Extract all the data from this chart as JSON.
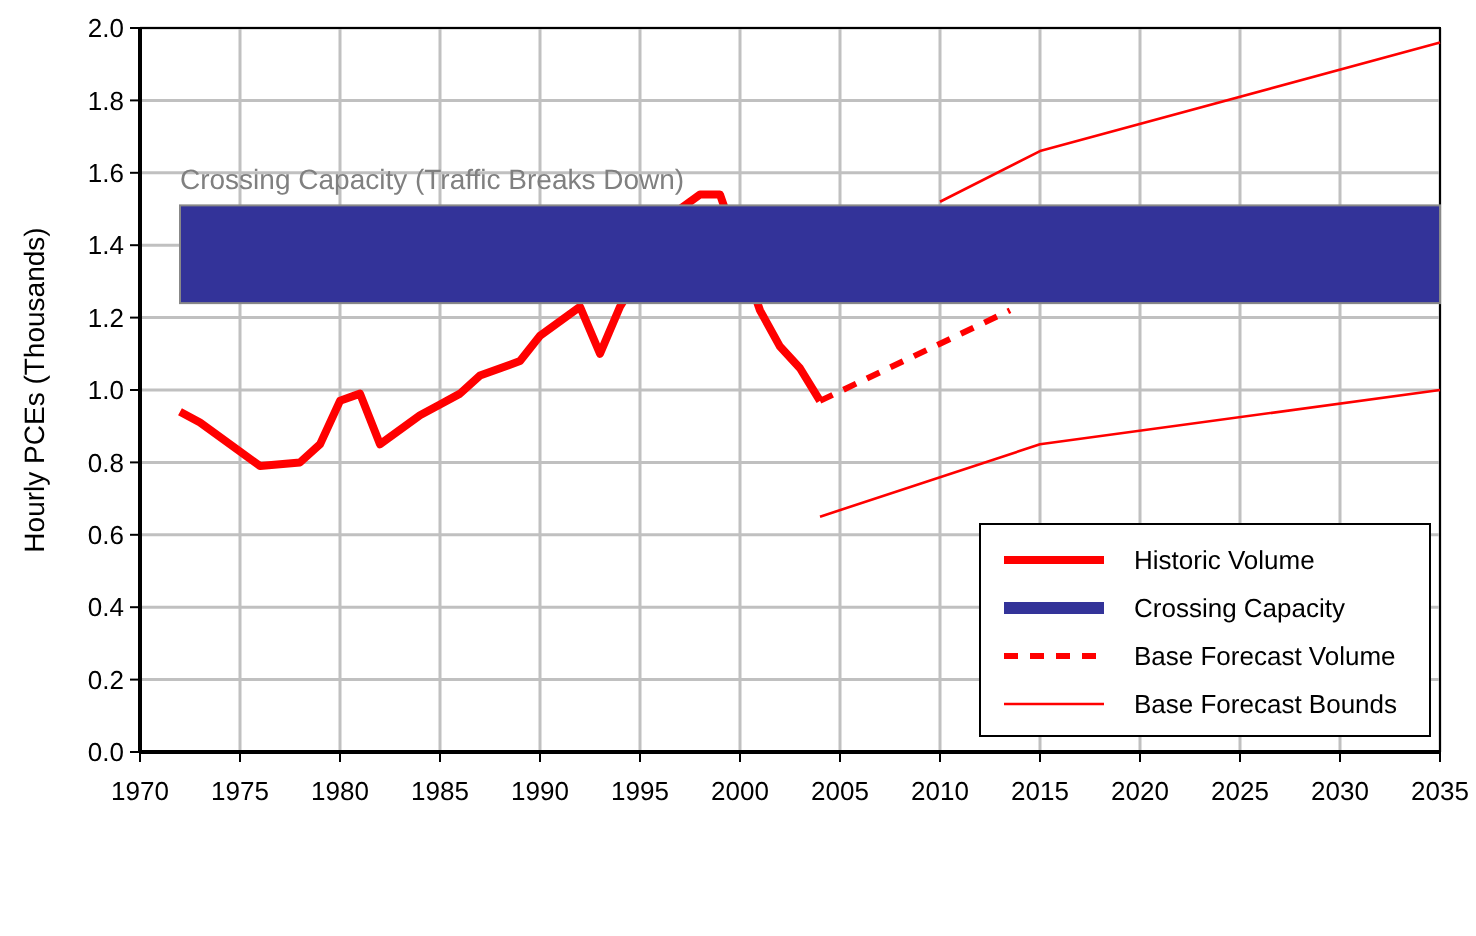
{
  "chart_data": {
    "type": "line",
    "ylabel": "Hourly PCEs (Thousands)",
    "xlim": [
      1970,
      2035
    ],
    "xticks": [
      1970,
      1975,
      1980,
      1985,
      1990,
      1995,
      2000,
      2005,
      2010,
      2015,
      2020,
      2025,
      2030,
      2035
    ],
    "ylim": [
      0,
      2
    ],
    "yticks": [
      {
        "value": 0,
        "label": "0.0"
      },
      {
        "value": 0.2,
        "label": "0.2"
      },
      {
        "value": 0.4,
        "label": "0.4"
      },
      {
        "value": 0.6,
        "label": "0.6"
      },
      {
        "value": 0.8,
        "label": "0.8"
      },
      {
        "value": 1,
        "label": "1.0"
      },
      {
        "value": 1.2,
        "label": "1.2"
      },
      {
        "value": 1.4,
        "label": "1.4"
      },
      {
        "value": 1.6,
        "label": "1.6"
      },
      {
        "value": 1.8,
        "label": "1.8"
      },
      {
        "value": 2,
        "label": "2.0"
      }
    ],
    "grid": true,
    "legend": "bottom right",
    "series": [
      {
        "name": "Historic Volume",
        "color": "#ff0000",
        "line_style": "solid",
        "x": [
          1972,
          1973,
          1976,
          1978,
          1979,
          1980,
          1981,
          1982,
          1984,
          1985,
          1986,
          1987,
          1989,
          1990,
          1991,
          1992,
          1993,
          1994,
          1997,
          1998,
          1999,
          2001,
          2002,
          2003,
          2004
        ],
        "values": [
          0.94,
          0.91,
          0.79,
          0.8,
          0.85,
          0.97,
          0.99,
          0.85,
          0.93,
          0.96,
          0.99,
          1.04,
          1.08,
          1.15,
          1.19,
          1.23,
          1.1,
          1.23,
          1.5,
          1.54,
          1.54,
          1.22,
          1.12,
          1.06,
          0.97
        ]
      },
      {
        "name": "Base Forecast Volume",
        "color": "#ff0000",
        "line_style": "dashed",
        "x": [
          2004,
          2013.5
        ],
        "values": [
          0.97,
          1.22
        ]
      },
      {
        "name": "Base Forecast Bounds",
        "color": "#ff0000",
        "line_style": "solid",
        "x": [
          2010,
          2015,
          2035
        ],
        "values": [
          1.52,
          1.66,
          1.96
        ]
      },
      {
        "color": "#ff0000",
        "line_style": "solid",
        "x": [
          2004,
          2015,
          2035
        ],
        "values": [
          0.65,
          0.85,
          1.0
        ]
      }
    ],
    "bands": [
      {
        "axis": "y",
        "from": 1.24,
        "to": 1.51,
        "label": "Crossing Capacity",
        "color": "#333399"
      }
    ],
    "annotations": [
      {
        "text": "Crossing Capacity (Traffic Breaks Down)",
        "x": 1972,
        "y": 1.51
      }
    ]
  }
}
